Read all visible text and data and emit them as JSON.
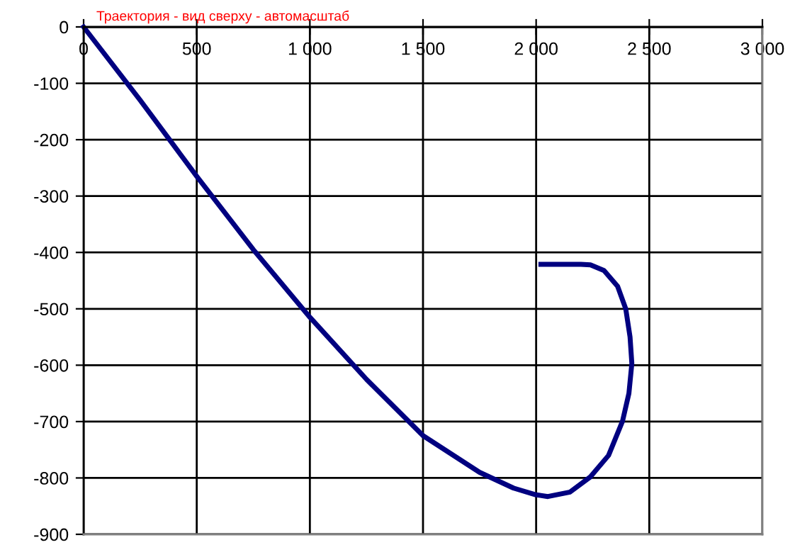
{
  "chart_data": {
    "type": "line",
    "title": "Траектория - вид сверху - автомасштаб",
    "series": [
      {
        "color": "#000080",
        "x": [
          0,
          250,
          500,
          750,
          1000,
          1250,
          1500,
          1750,
          1900,
          2000,
          2052,
          2150,
          2240,
          2320,
          2382,
          2410,
          2423,
          2415,
          2396,
          2360,
          2300,
          2240,
          2198,
          2021
        ],
        "values": [
          0,
          -130,
          -265,
          -395,
          -515,
          -625,
          -725,
          -790,
          -818,
          -830,
          -833,
          -825,
          -798,
          -760,
          -699,
          -650,
          -597,
          -550,
          -500,
          -460,
          -432,
          -422,
          -421,
          -421
        ]
      }
    ],
    "xlim": [
      0,
      3000
    ],
    "xticks": [
      0,
      {
        "value": 500,
        "label": "500"
      },
      {
        "value": 1000,
        "label": "1 000"
      },
      {
        "value": 1500,
        "label": "1 500"
      },
      {
        "value": 2000,
        "label": "2 000"
      },
      {
        "value": 2500,
        "label": "2 500"
      },
      {
        "value": 3000,
        "label": "3 000"
      }
    ],
    "ylim": [
      -900,
      0
    ],
    "yticks": [
      -900,
      -800,
      -700,
      -600,
      -500,
      -400,
      -300,
      -200,
      -100,
      0
    ],
    "grid": true,
    "marker": "none",
    "line_style": "solid",
    "legend": false
  }
}
